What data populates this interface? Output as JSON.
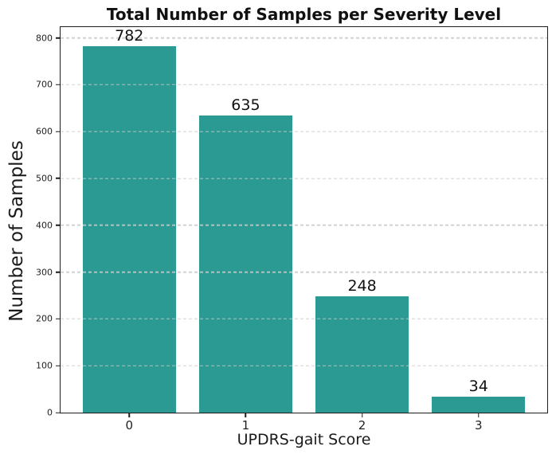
{
  "chart_data": {
    "type": "bar",
    "title": "Total Number of Samples per Severity Level",
    "xlabel": "UPDRS-gait Score",
    "ylabel": "Number of Samples",
    "categories": [
      "0",
      "1",
      "2",
      "3"
    ],
    "values": [
      782,
      635,
      248,
      34
    ],
    "bar_labels": [
      "782",
      "635",
      "248",
      "34"
    ],
    "yticks": [
      0,
      100,
      200,
      300,
      400,
      500,
      600,
      700,
      800
    ],
    "ylim": [
      0,
      823
    ],
    "xlim": [
      -0.59,
      3.59
    ],
    "bar_width": 0.8,
    "grid": {
      "axis": "y",
      "style": "dashed",
      "over_bars": true
    },
    "legend": "none",
    "colors": {
      "bar": "#2a9a92",
      "spine": "#1c1c1c",
      "grid": "#c9c9c9",
      "title_text": "#111111",
      "tick_text": "#222222"
    }
  }
}
